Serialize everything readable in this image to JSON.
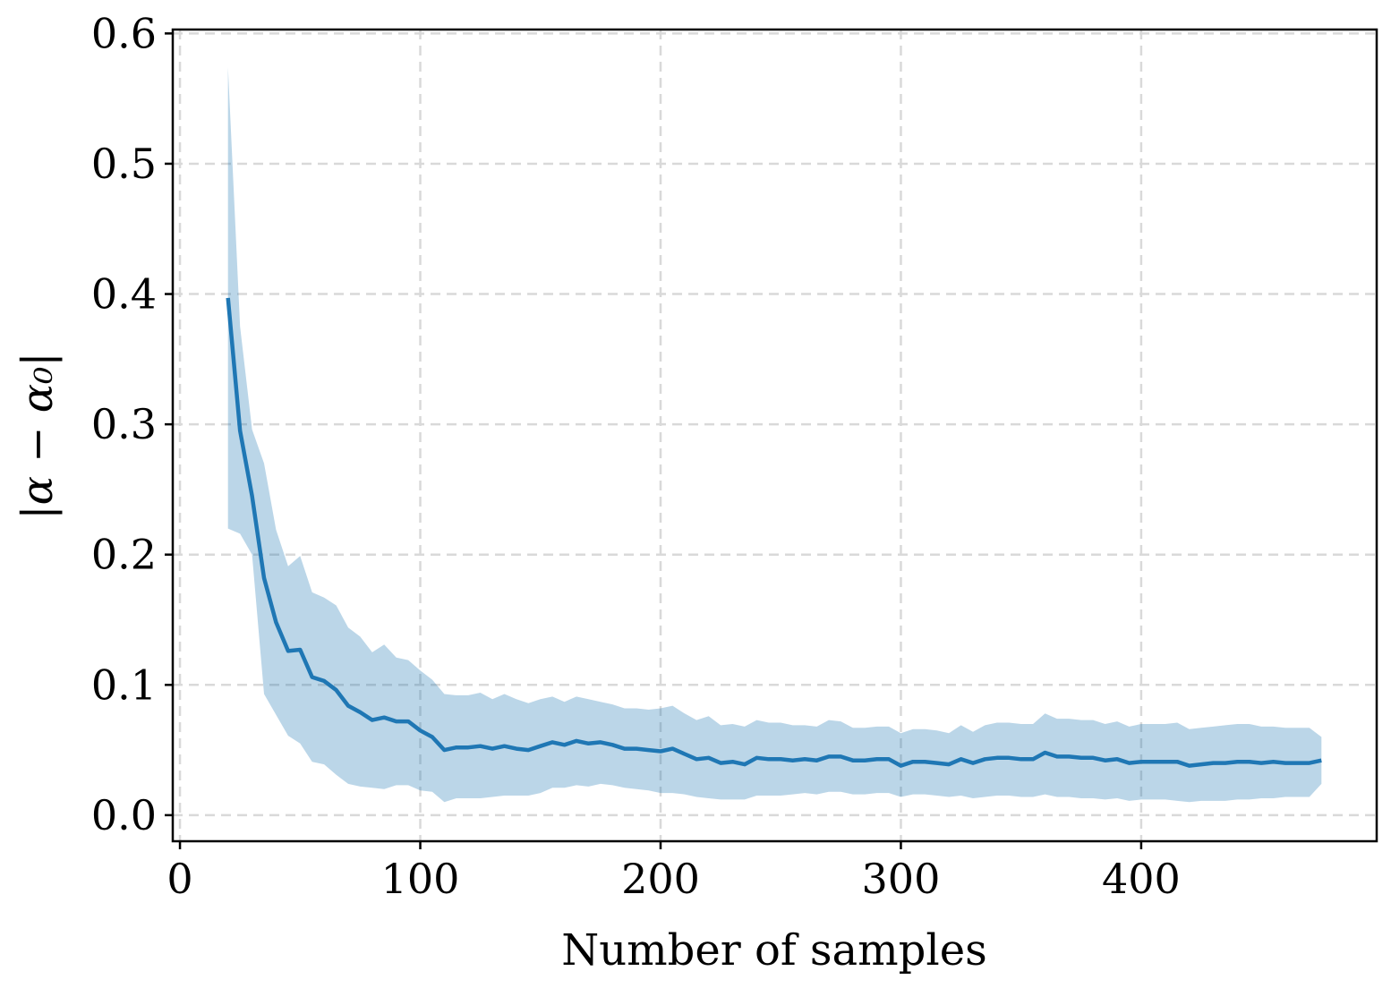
{
  "chart_data": {
    "type": "line",
    "title": "",
    "xlabel": "Number of samples",
    "ylabel": "|α − α₀|",
    "xlim": [
      -3,
      498
    ],
    "ylim": [
      -0.02,
      0.603
    ],
    "xticks": [
      0,
      100,
      200,
      300,
      400
    ],
    "xtick_labels": [
      "0",
      "100",
      "200",
      "300",
      "400"
    ],
    "yticks": [
      0.0,
      0.1,
      0.2,
      0.3,
      0.4,
      0.5,
      0.6
    ],
    "ytick_labels": [
      "0.0",
      "0.1",
      "0.2",
      "0.3",
      "0.4",
      "0.5",
      "0.6"
    ],
    "grid": true,
    "line_color": "#1f77b4",
    "band_color": "#1f77b4",
    "x": [
      20,
      25,
      30,
      35,
      40,
      45,
      50,
      55,
      60,
      65,
      70,
      75,
      80,
      85,
      90,
      95,
      100,
      105,
      110,
      115,
      120,
      125,
      130,
      135,
      140,
      145,
      150,
      155,
      160,
      165,
      170,
      175,
      180,
      185,
      190,
      195,
      200,
      205,
      210,
      215,
      220,
      225,
      230,
      235,
      240,
      245,
      250,
      255,
      260,
      265,
      270,
      275,
      280,
      285,
      290,
      295,
      300,
      305,
      310,
      315,
      320,
      325,
      330,
      335,
      340,
      345,
      350,
      355,
      360,
      365,
      370,
      375,
      380,
      385,
      390,
      395,
      400,
      405,
      410,
      415,
      420,
      425,
      430,
      435,
      440,
      445,
      450,
      455,
      460,
      465,
      470,
      475
    ],
    "series": [
      {
        "values": [
          0.397,
          0.295,
          0.245,
          0.182,
          0.148,
          0.126,
          0.127,
          0.106,
          0.103,
          0.096,
          0.084,
          0.079,
          0.073,
          0.075,
          0.072,
          0.072,
          0.065,
          0.06,
          0.05,
          0.052,
          0.052,
          0.053,
          0.051,
          0.053,
          0.051,
          0.05,
          0.053,
          0.056,
          0.054,
          0.057,
          0.055,
          0.056,
          0.054,
          0.051,
          0.051,
          0.05,
          0.049,
          0.051,
          0.047,
          0.043,
          0.044,
          0.04,
          0.041,
          0.039,
          0.044,
          0.043,
          0.043,
          0.042,
          0.043,
          0.042,
          0.045,
          0.045,
          0.042,
          0.042,
          0.043,
          0.043,
          0.038,
          0.041,
          0.041,
          0.04,
          0.039,
          0.043,
          0.04,
          0.043,
          0.044,
          0.044,
          0.043,
          0.043,
          0.048,
          0.045,
          0.045,
          0.044,
          0.044,
          0.042,
          0.043,
          0.04,
          0.041,
          0.041,
          0.041,
          0.041,
          0.038,
          0.039,
          0.04,
          0.04,
          0.041,
          0.041,
          0.04,
          0.041,
          0.04,
          0.04,
          0.04,
          0.042
        ],
        "lower": [
          0.22,
          0.216,
          0.2,
          0.093,
          0.077,
          0.061,
          0.055,
          0.041,
          0.039,
          0.031,
          0.024,
          0.022,
          0.021,
          0.02,
          0.023,
          0.023,
          0.019,
          0.018,
          0.01,
          0.013,
          0.013,
          0.013,
          0.014,
          0.015,
          0.015,
          0.015,
          0.017,
          0.021,
          0.021,
          0.023,
          0.022,
          0.024,
          0.023,
          0.021,
          0.02,
          0.019,
          0.017,
          0.017,
          0.016,
          0.014,
          0.013,
          0.012,
          0.012,
          0.012,
          0.015,
          0.015,
          0.015,
          0.016,
          0.017,
          0.016,
          0.018,
          0.018,
          0.016,
          0.016,
          0.017,
          0.017,
          0.014,
          0.016,
          0.016,
          0.015,
          0.014,
          0.015,
          0.013,
          0.014,
          0.015,
          0.015,
          0.014,
          0.014,
          0.016,
          0.014,
          0.014,
          0.013,
          0.013,
          0.012,
          0.013,
          0.011,
          0.012,
          0.012,
          0.012,
          0.011,
          0.01,
          0.011,
          0.011,
          0.011,
          0.012,
          0.012,
          0.013,
          0.013,
          0.014,
          0.014,
          0.014,
          0.024
        ],
        "upper": [
          0.574,
          0.375,
          0.296,
          0.27,
          0.219,
          0.191,
          0.199,
          0.171,
          0.167,
          0.161,
          0.144,
          0.137,
          0.125,
          0.131,
          0.121,
          0.119,
          0.111,
          0.104,
          0.093,
          0.092,
          0.092,
          0.094,
          0.089,
          0.093,
          0.089,
          0.086,
          0.089,
          0.091,
          0.087,
          0.091,
          0.089,
          0.087,
          0.085,
          0.082,
          0.082,
          0.081,
          0.082,
          0.084,
          0.078,
          0.073,
          0.076,
          0.069,
          0.07,
          0.068,
          0.073,
          0.071,
          0.071,
          0.069,
          0.069,
          0.068,
          0.073,
          0.072,
          0.067,
          0.067,
          0.068,
          0.068,
          0.063,
          0.066,
          0.066,
          0.065,
          0.063,
          0.069,
          0.064,
          0.069,
          0.071,
          0.071,
          0.07,
          0.07,
          0.078,
          0.074,
          0.074,
          0.073,
          0.073,
          0.07,
          0.072,
          0.068,
          0.07,
          0.07,
          0.07,
          0.071,
          0.066,
          0.067,
          0.068,
          0.069,
          0.07,
          0.07,
          0.068,
          0.068,
          0.067,
          0.067,
          0.067,
          0.06
        ]
      }
    ]
  }
}
